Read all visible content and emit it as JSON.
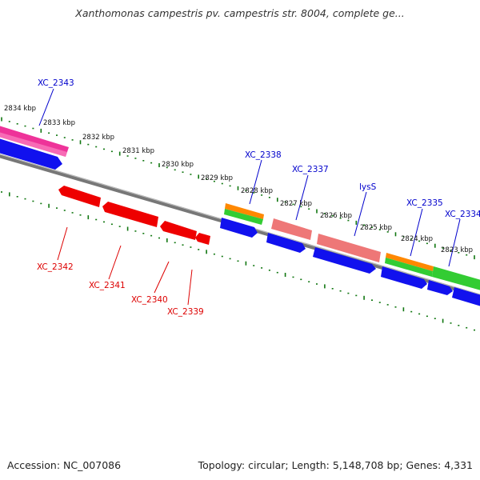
{
  "title": "Xanthomonas campestris pv. campestris str. 8004, complete ge...",
  "footer": {
    "accession": "Accession: NC_007086",
    "stats": "Topology: circular; Length: 5,148,708 bp; Genes: 4,331"
  },
  "tick_labels": [
    "2834 kbp",
    "2833 kbp",
    "2832 kbp",
    "2831 kbp",
    "2830 kbp",
    "2829 kbp",
    "2828 kbp",
    "2827 kbp",
    "2826 kbp",
    "2825 kbp",
    "2824 kbp",
    "2823 kbp"
  ],
  "genes_forward_strand": [
    {
      "label": "XC_2343",
      "color": "#0000cc"
    },
    {
      "label": "XC_2338",
      "color": "#0000cc"
    },
    {
      "label": "XC_2337",
      "color": "#0000cc"
    },
    {
      "label": "lysS",
      "color": "#0000cc"
    },
    {
      "label": "XC_2335",
      "color": "#0000cc"
    },
    {
      "label": "XC_2334",
      "color": "#0000cc"
    }
  ],
  "genes_reverse_strand": [
    {
      "label": "XC_2342",
      "color": "#dd0000"
    },
    {
      "label": "XC_2341",
      "color": "#dd0000"
    },
    {
      "label": "XC_2340",
      "color": "#dd0000"
    },
    {
      "label": "XC_2339",
      "color": "#dd0000"
    }
  ],
  "colors": {
    "backbone": "#777777",
    "tick": "#117711",
    "cds": "#1111ee",
    "gene_reverse": "#ee0000",
    "gene_forward": "#ee7777",
    "rrna": "#ff8800",
    "trna": "#33cc33",
    "pseudo": "#ee3399"
  }
}
